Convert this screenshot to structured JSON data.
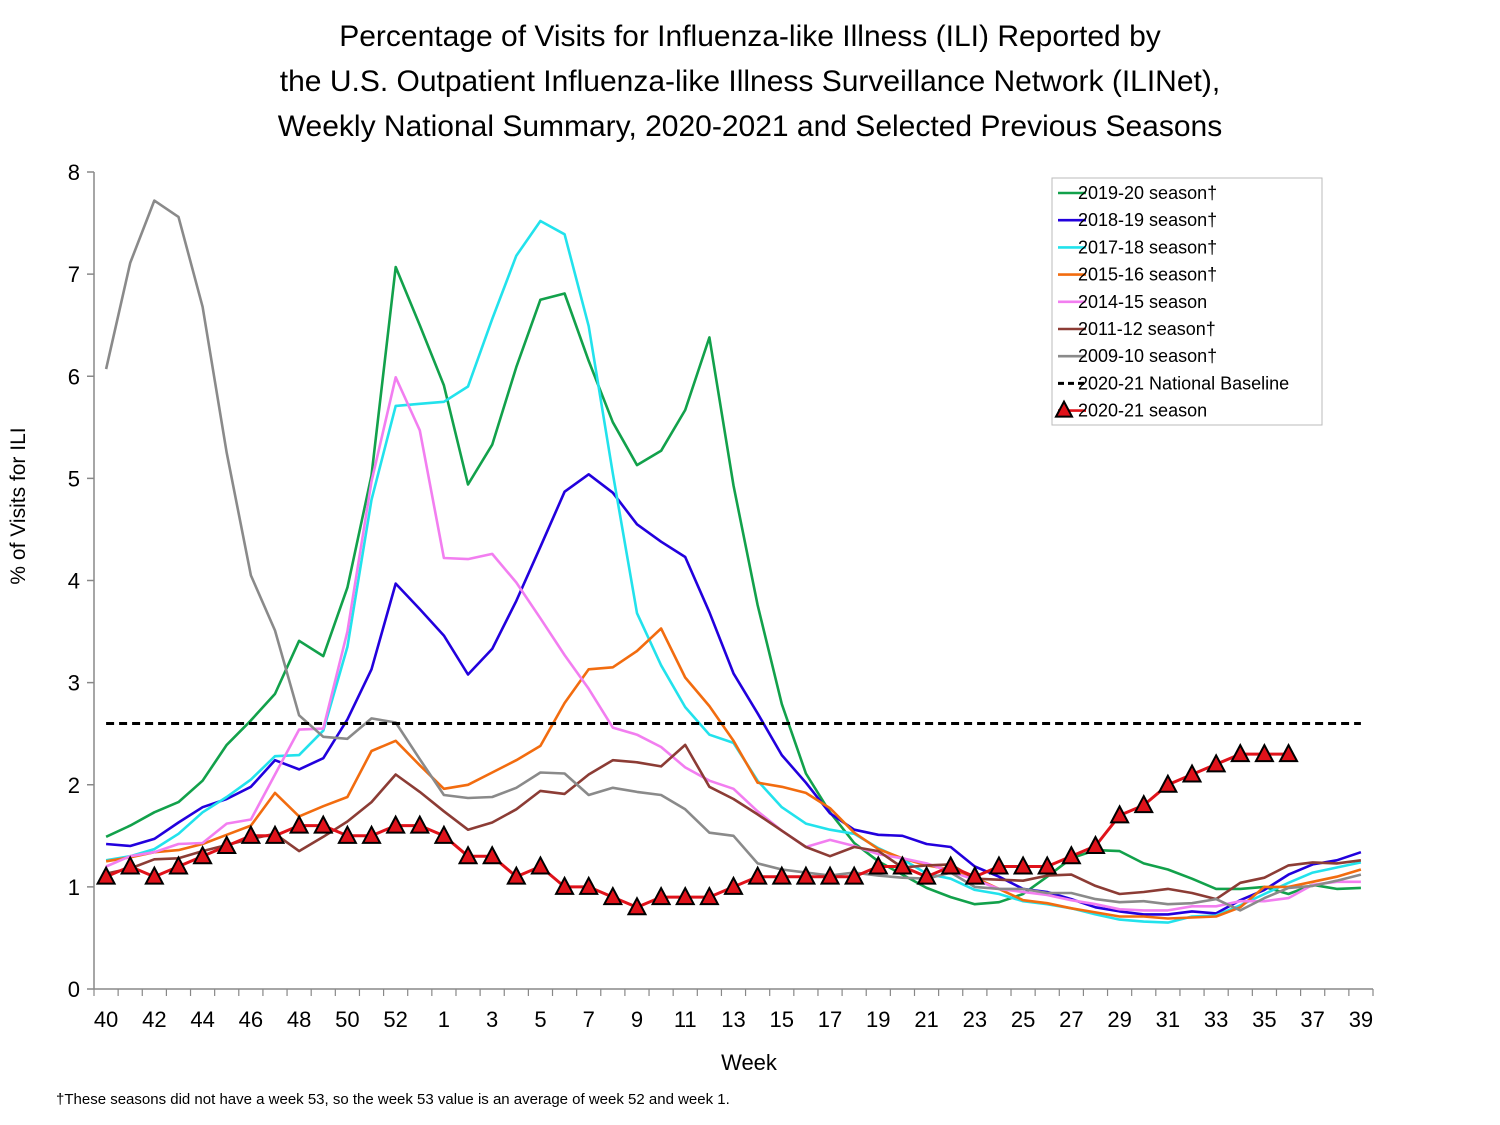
{
  "title_lines": [
    "Percentage of Visits for Influenza-like Illness (ILI) Reported by",
    "the U.S. Outpatient Influenza-like Illness Surveillance Network (ILINet),",
    "Weekly National Summary, 2020-2021 and Selected Previous Seasons"
  ],
  "footnote": "†These seasons did not have a week 53, so the week 53 value is an average of week 52 and week 1.",
  "chart_data": {
    "type": "line",
    "title": "Percentage of Visits for Influenza-like Illness (ILI) Reported by the U.S. Outpatient Influenza-like Illness Surveillance Network (ILINet), Weekly National Summary, 2020-2021 and Selected Previous Seasons",
    "xlabel": "Week",
    "ylabel": "% of Visits for ILI",
    "ylim": [
      0,
      8
    ],
    "yticks": [
      "0",
      "1",
      "2",
      "3",
      "4",
      "5",
      "6",
      "7",
      "8"
    ],
    "weeks": [
      "40",
      "41",
      "42",
      "43",
      "44",
      "45",
      "46",
      "47",
      "48",
      "49",
      "50",
      "51",
      "52",
      "53",
      "1",
      "2",
      "3",
      "4",
      "5",
      "6",
      "7",
      "8",
      "9",
      "10",
      "11",
      "12",
      "13",
      "14",
      "15",
      "16",
      "17",
      "18",
      "19",
      "20",
      "21",
      "22",
      "23",
      "24",
      "25",
      "26",
      "27",
      "28",
      "29",
      "30",
      "31",
      "32",
      "33",
      "34",
      "35",
      "36",
      "37",
      "38",
      "39"
    ],
    "xtick_labels": [
      "40",
      "42",
      "44",
      "46",
      "48",
      "50",
      "52",
      "1",
      "3",
      "5",
      "7",
      "9",
      "11",
      "13",
      "15",
      "17",
      "19",
      "21",
      "23",
      "25",
      "27",
      "29",
      "31",
      "33",
      "35",
      "37",
      "39"
    ],
    "legend_position": "top-right",
    "grid": false,
    "series": [
      {
        "name": "2019-20 season†",
        "color": "#12a14b",
        "values": [
          1.49,
          1.6,
          1.73,
          1.83,
          2.04,
          2.39,
          2.63,
          2.89,
          3.41,
          3.26,
          3.93,
          5.03,
          7.07,
          6.5,
          5.91,
          4.94,
          5.33,
          6.09,
          6.75,
          6.81,
          6.15,
          5.55,
          5.13,
          5.27,
          5.67,
          6.38,
          4.93,
          3.76,
          2.79,
          2.11,
          1.73,
          1.43,
          1.25,
          1.12,
          0.99,
          0.9,
          0.83,
          0.85,
          0.93,
          1.1,
          1.28,
          1.36,
          1.35,
          1.23,
          1.17,
          1.08,
          0.98,
          0.98,
          1.0,
          0.93,
          1.02,
          0.98,
          0.99
        ]
      },
      {
        "name": "2018-19 season†",
        "color": "#2200dd",
        "values": [
          1.42,
          1.4,
          1.47,
          1.63,
          1.78,
          1.86,
          1.98,
          2.24,
          2.15,
          2.26,
          2.64,
          3.13,
          3.97,
          3.72,
          3.46,
          3.08,
          3.33,
          3.8,
          4.33,
          4.87,
          5.04,
          4.86,
          4.55,
          4.38,
          4.23,
          3.69,
          3.09,
          2.7,
          2.29,
          2.02,
          1.72,
          1.56,
          1.51,
          1.5,
          1.42,
          1.39,
          1.2,
          1.1,
          0.98,
          0.95,
          0.88,
          0.8,
          0.76,
          0.73,
          0.73,
          0.76,
          0.74,
          0.87,
          0.97,
          1.12,
          1.22,
          1.26,
          1.34
        ]
      },
      {
        "name": "2017-18 season†",
        "color": "#22e2ec",
        "values": [
          1.26,
          1.3,
          1.37,
          1.52,
          1.73,
          1.88,
          2.05,
          2.28,
          2.29,
          2.53,
          3.35,
          4.79,
          5.71,
          5.73,
          5.75,
          5.9,
          6.56,
          7.18,
          7.52,
          7.39,
          6.49,
          5.05,
          3.68,
          3.17,
          2.76,
          2.49,
          2.41,
          2.04,
          1.78,
          1.62,
          1.56,
          1.52,
          1.38,
          1.27,
          1.13,
          1.08,
          0.97,
          0.93,
          0.86,
          0.83,
          0.79,
          0.73,
          0.68,
          0.66,
          0.65,
          0.71,
          0.72,
          0.82,
          0.93,
          1.04,
          1.14,
          1.19,
          1.24
        ]
      },
      {
        "name": "2015-16 season†",
        "color": "#f26c0f",
        "values": [
          1.25,
          1.29,
          1.34,
          1.36,
          1.42,
          1.51,
          1.6,
          1.92,
          1.69,
          1.79,
          1.88,
          2.33,
          2.43,
          2.19,
          1.96,
          2.0,
          2.12,
          2.24,
          2.38,
          2.8,
          3.13,
          3.15,
          3.31,
          3.53,
          3.05,
          2.77,
          2.43,
          2.02,
          1.98,
          1.92,
          1.77,
          1.53,
          1.37,
          1.28,
          1.21,
          1.17,
          1.09,
          0.98,
          0.87,
          0.84,
          0.79,
          0.75,
          0.71,
          0.71,
          0.69,
          0.7,
          0.71,
          0.8,
          1.0,
          1.0,
          1.05,
          1.1,
          1.17
        ]
      },
      {
        "name": "2014-15 season",
        "color": "#f27ef0",
        "values": [
          1.2,
          1.3,
          1.34,
          1.42,
          1.43,
          1.62,
          1.66,
          2.1,
          2.54,
          2.55,
          3.5,
          4.97,
          5.99,
          5.47,
          4.22,
          4.21,
          4.26,
          3.98,
          3.63,
          3.27,
          2.94,
          2.56,
          2.49,
          2.37,
          2.17,
          2.04,
          1.96,
          1.74,
          1.55,
          1.39,
          1.46,
          1.4,
          1.32,
          1.28,
          1.23,
          1.15,
          1.07,
          0.98,
          0.95,
          0.92,
          0.87,
          0.83,
          0.78,
          0.77,
          0.77,
          0.81,
          0.81,
          0.86,
          0.86,
          0.89,
          1.02,
          1.05,
          1.05
        ]
      },
      {
        "name": "2011-12 season†",
        "color": "#8c3c35",
        "values": [
          1.13,
          1.18,
          1.27,
          1.28,
          1.35,
          1.41,
          1.47,
          1.52,
          1.35,
          1.49,
          1.64,
          1.83,
          2.1,
          1.93,
          1.74,
          1.56,
          1.63,
          1.76,
          1.94,
          1.91,
          2.1,
          2.24,
          2.22,
          2.18,
          2.39,
          1.98,
          1.86,
          1.71,
          1.55,
          1.39,
          1.3,
          1.39,
          1.35,
          1.19,
          1.21,
          1.22,
          1.08,
          1.07,
          1.06,
          1.11,
          1.12,
          1.01,
          0.93,
          0.95,
          0.98,
          0.94,
          0.88,
          1.04,
          1.09,
          1.21,
          1.24,
          1.23,
          1.26
        ]
      },
      {
        "name": "2009-10 season†",
        "color": "#8a8a8a",
        "values": [
          6.07,
          7.11,
          7.72,
          7.56,
          6.68,
          5.25,
          4.05,
          3.51,
          2.68,
          2.47,
          2.45,
          2.65,
          2.61,
          2.25,
          1.9,
          1.87,
          1.88,
          1.97,
          2.12,
          2.11,
          1.9,
          1.97,
          1.93,
          1.9,
          1.76,
          1.53,
          1.5,
          1.23,
          1.17,
          1.14,
          1.11,
          1.14,
          1.11,
          1.09,
          1.08,
          1.14,
          1.0,
          0.98,
          0.98,
          0.94,
          0.94,
          0.88,
          0.85,
          0.86,
          0.83,
          0.84,
          0.88,
          0.77,
          0.89,
          0.99,
          1.01,
          1.06,
          1.12
        ]
      },
      {
        "name": "2020-21 National Baseline",
        "color": "#000000",
        "dashed": true,
        "values": [
          2.6,
          2.6,
          2.6,
          2.6,
          2.6,
          2.6,
          2.6,
          2.6,
          2.6,
          2.6,
          2.6,
          2.6,
          2.6,
          2.6,
          2.6,
          2.6,
          2.6,
          2.6,
          2.6,
          2.6,
          2.6,
          2.6,
          2.6,
          2.6,
          2.6,
          2.6,
          2.6,
          2.6,
          2.6,
          2.6,
          2.6,
          2.6,
          2.6,
          2.6,
          2.6,
          2.6,
          2.6,
          2.6,
          2.6,
          2.6,
          2.6,
          2.6,
          2.6,
          2.6,
          2.6,
          2.6,
          2.6,
          2.6,
          2.6,
          2.6,
          2.6,
          2.6,
          2.6
        ]
      },
      {
        "name": "2020-21 season",
        "color": "#e0121a",
        "marker": "triangle",
        "values": [
          1.1,
          1.2,
          1.1,
          1.2,
          1.3,
          1.4,
          1.5,
          1.5,
          1.6,
          1.6,
          1.5,
          1.5,
          1.6,
          1.6,
          1.5,
          1.3,
          1.3,
          1.1,
          1.2,
          1.0,
          1.0,
          0.9,
          0.8,
          0.9,
          0.9,
          0.9,
          1.0,
          1.1,
          1.1,
          1.1,
          1.1,
          1.1,
          1.2,
          1.2,
          1.1,
          1.2,
          1.1,
          1.2,
          1.2,
          1.2,
          1.3,
          1.4,
          1.7,
          1.8,
          2.0,
          2.1,
          2.2,
          2.3,
          2.3,
          2.3
        ]
      }
    ]
  }
}
